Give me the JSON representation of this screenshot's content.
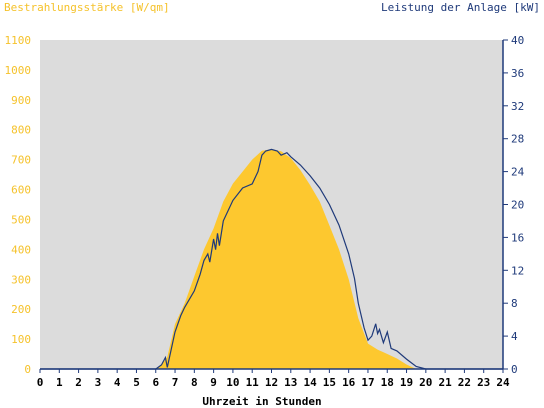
{
  "chart_data": {
    "type": "area",
    "title_left": "Bestrahlungsstärke [W/qm]",
    "title_right": "Leistung der Anlage [kW]",
    "xlabel": "Uhrzeit in Stunden",
    "xlim": [
      0,
      24
    ],
    "x_ticks": [
      "0",
      "1",
      "2",
      "3",
      "4",
      "5",
      "6",
      "7",
      "8",
      "9",
      "10",
      "11",
      "12",
      "13",
      "14",
      "15",
      "16",
      "17",
      "18",
      "19",
      "20",
      "21",
      "22",
      "23",
      "24"
    ],
    "y_left": {
      "lim": [
        0,
        1100
      ],
      "ticks": [
        "0",
        "100",
        "200",
        "300",
        "400",
        "500",
        "600",
        "700",
        "800",
        "900",
        "1000",
        "1100"
      ]
    },
    "y_right": {
      "lim": [
        0,
        40
      ],
      "ticks": [
        "0",
        "4",
        "8",
        "12",
        "16",
        "20",
        "24",
        "28",
        "32",
        "36",
        "40"
      ]
    },
    "grid": false,
    "colors": {
      "plot_bg": "#dcdcdc",
      "irradiance_fill": "#fdc82f",
      "power_line": "#1f3a7a",
      "left_axis_text": "#f5c22b",
      "right_axis_text": "#1f3a7a",
      "axis_line": "#1f3a7a"
    },
    "series": [
      {
        "unit_axis": "left",
        "x": [
          0,
          6.0,
          6.3,
          6.6,
          7.0,
          7.5,
          8.0,
          8.5,
          9.0,
          9.5,
          10.0,
          10.5,
          11.0,
          11.5,
          12.0,
          12.5,
          13.0,
          13.5,
          14.0,
          14.5,
          15.0,
          15.5,
          16.0,
          16.5,
          17.0,
          17.5,
          18.0,
          18.5,
          19.0,
          19.5,
          24
        ],
        "values": [
          0,
          0,
          15,
          40,
          150,
          220,
          310,
          400,
          470,
          560,
          620,
          660,
          700,
          730,
          735,
          728,
          705,
          665,
          615,
          560,
          480,
          400,
          300,
          170,
          85,
          65,
          50,
          35,
          15,
          0,
          0
        ]
      },
      {
        "unit_axis": "right",
        "x": [
          0,
          6.0,
          6.3,
          6.5,
          6.6,
          7.0,
          7.3,
          7.5,
          8.0,
          8.3,
          8.5,
          8.7,
          8.8,
          9.0,
          9.1,
          9.2,
          9.3,
          9.5,
          10.0,
          10.5,
          11.0,
          11.3,
          11.5,
          11.7,
          12.0,
          12.3,
          12.5,
          12.8,
          13.0,
          13.5,
          14.0,
          14.5,
          15.0,
          15.5,
          16.0,
          16.3,
          16.5,
          16.8,
          17.0,
          17.2,
          17.4,
          17.5,
          17.6,
          17.8,
          18.0,
          18.2,
          18.5,
          19.0,
          19.5,
          20.0,
          24
        ],
        "values": [
          0,
          0,
          0.5,
          1.4,
          0.2,
          4.5,
          6.5,
          7.5,
          9.5,
          11.5,
          13.2,
          14.0,
          13.0,
          15.8,
          14.5,
          16.5,
          15.0,
          18.0,
          20.5,
          22.0,
          22.5,
          24.0,
          26.0,
          26.5,
          26.7,
          26.5,
          26.0,
          26.3,
          25.8,
          24.8,
          23.5,
          22.0,
          20.0,
          17.5,
          14.0,
          11.0,
          8.0,
          5.0,
          3.5,
          4.0,
          5.5,
          4.3,
          4.8,
          3.2,
          4.5,
          2.5,
          2.2,
          1.2,
          0.3,
          0,
          0
        ]
      }
    ]
  }
}
